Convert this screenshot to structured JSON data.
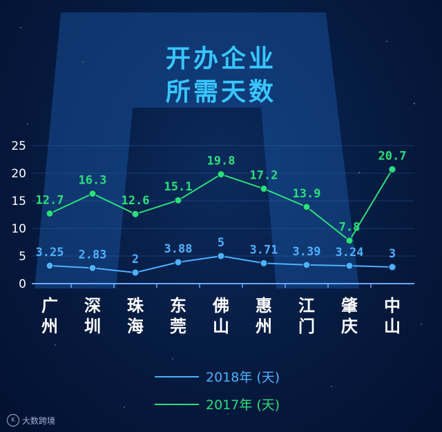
{
  "title_line1": "开办企业",
  "title_line2": "所需天数",
  "chart_data": {
    "type": "line",
    "categories": [
      [
        "广",
        "州"
      ],
      [
        "深",
        "圳"
      ],
      [
        "珠",
        "海"
      ],
      [
        "东",
        "莞"
      ],
      [
        "佛",
        "山"
      ],
      [
        "惠",
        "州"
      ],
      [
        "江",
        "门"
      ],
      [
        "肇",
        "庆"
      ],
      [
        "中",
        "山"
      ]
    ],
    "series": [
      {
        "name": "2018年 (天)",
        "color": "#4fb1ff",
        "values": [
          3.25,
          2.83,
          2,
          3.88,
          5,
          3.71,
          3.39,
          3.24,
          3
        ],
        "labels": [
          "3.25",
          "2.83",
          "2",
          "3.88",
          "5",
          "3.71",
          "3.39",
          "3.24",
          "3"
        ]
      },
      {
        "name": "2017年 (天)",
        "color": "#2be07a",
        "values": [
          12.7,
          16.3,
          12.6,
          15.1,
          19.8,
          17.2,
          13.9,
          7.8,
          20.7
        ],
        "labels": [
          "12.7",
          "16.3",
          "12.6",
          "15.1",
          "19.8",
          "17.2",
          "13.9",
          "7.8",
          "20.7"
        ]
      }
    ],
    "yticks": [
      "0",
      "5",
      "10",
      "15",
      "20",
      "25"
    ],
    "ylim": [
      0,
      25
    ],
    "grid": true,
    "legend_position": "bottom-center"
  },
  "watermark": "大数跨境",
  "watermark_icon": "kdo-logo-icon"
}
